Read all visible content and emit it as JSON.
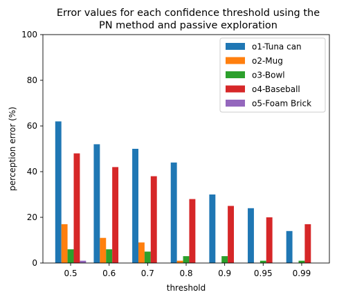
{
  "chart_data": {
    "type": "bar",
    "title_lines": [
      "Error values for each confidence threshold using the",
      "PN method and passive exploration"
    ],
    "xlabel": "threshold",
    "ylabel": "perception error (%)",
    "categories": [
      "0.5",
      "0.6",
      "0.7",
      "0.8",
      "0.9",
      "0.95",
      "0.99"
    ],
    "ylim": [
      0,
      100
    ],
    "yticks": [
      0,
      20,
      40,
      60,
      80,
      100
    ],
    "grid": false,
    "legend_position": "top-right",
    "series": [
      {
        "name": "o1-Tuna can",
        "color": "#1f77b4",
        "values": [
          62,
          52,
          50,
          44,
          30,
          24,
          14
        ]
      },
      {
        "name": "o2-Mug",
        "color": "#ff7f0e",
        "values": [
          17,
          11,
          9,
          1,
          0,
          0,
          0
        ]
      },
      {
        "name": "o3-Bowl",
        "color": "#2ca02c",
        "values": [
          6,
          6,
          5,
          3,
          3,
          1,
          1
        ]
      },
      {
        "name": "o4-Baseball",
        "color": "#d62728",
        "values": [
          48,
          42,
          38,
          28,
          25,
          20,
          17
        ]
      },
      {
        "name": "o5-Foam Brick",
        "color": "#9467bd",
        "values": [
          1,
          0,
          0,
          0,
          0,
          0,
          0
        ]
      }
    ]
  }
}
